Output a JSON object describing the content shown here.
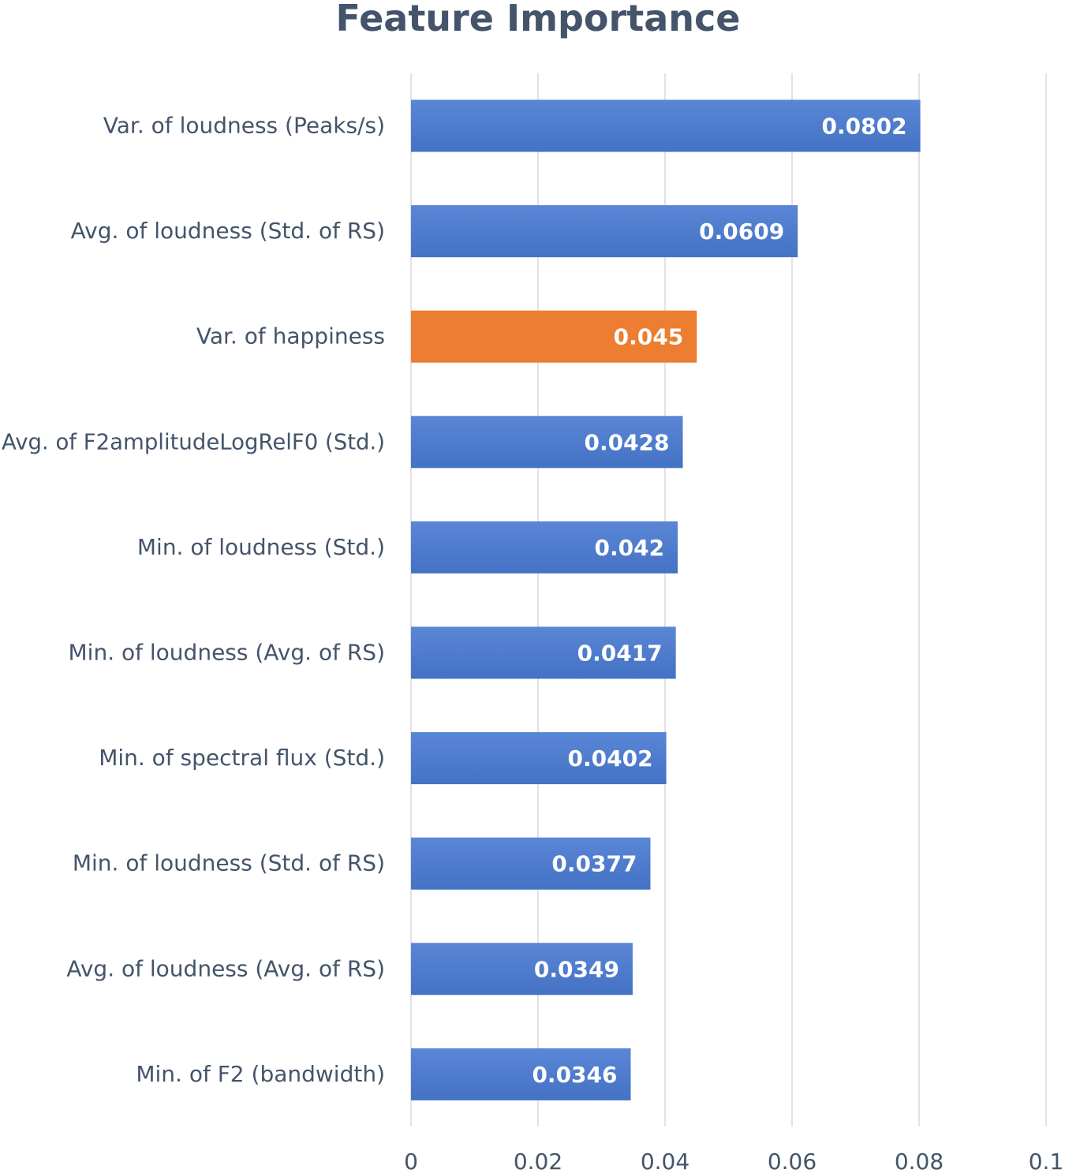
{
  "chart_data": {
    "type": "bar",
    "orientation": "horizontal",
    "title": "Feature Importance",
    "xlabel": "",
    "ylabel": "",
    "xlim": [
      0,
      0.1
    ],
    "x_ticks": [
      "0",
      "0.02",
      "0.04",
      "0.06",
      "0.08",
      "0.1"
    ],
    "x_tick_values": [
      0,
      0.02,
      0.04,
      0.06,
      0.08,
      0.1
    ],
    "grid": true,
    "legend": "none",
    "categories": [
      "Var. of loudness (Peaks/s)",
      "Avg. of loudness (Std. of RS)",
      "Var. of happiness",
      "Avg. of F2amplitudeLogRelF0 (Std.)",
      "Min. of loudness (Std.)",
      "Min. of loudness (Avg. of RS)",
      "Min. of spectral flux (Std.)",
      "Min. of loudness (Std. of RS)",
      "Avg. of loudness (Avg. of RS)",
      "Min. of F2 (bandwidth)"
    ],
    "values": [
      0.0802,
      0.0609,
      0.045,
      0.0428,
      0.042,
      0.0417,
      0.0402,
      0.0377,
      0.0349,
      0.0346
    ],
    "value_labels": [
      "0.0802",
      "0.0609",
      "0.045",
      "0.0428",
      "0.042",
      "0.0417",
      "0.0402",
      "0.0377",
      "0.0349",
      "0.0346"
    ],
    "highlight_index": 2,
    "colors": {
      "bar": "#4472c4",
      "bar_gradient_top": "#5a86d6",
      "highlight": "#ed7d31",
      "grid": "#d9d9d9",
      "text": "#44546a"
    }
  }
}
